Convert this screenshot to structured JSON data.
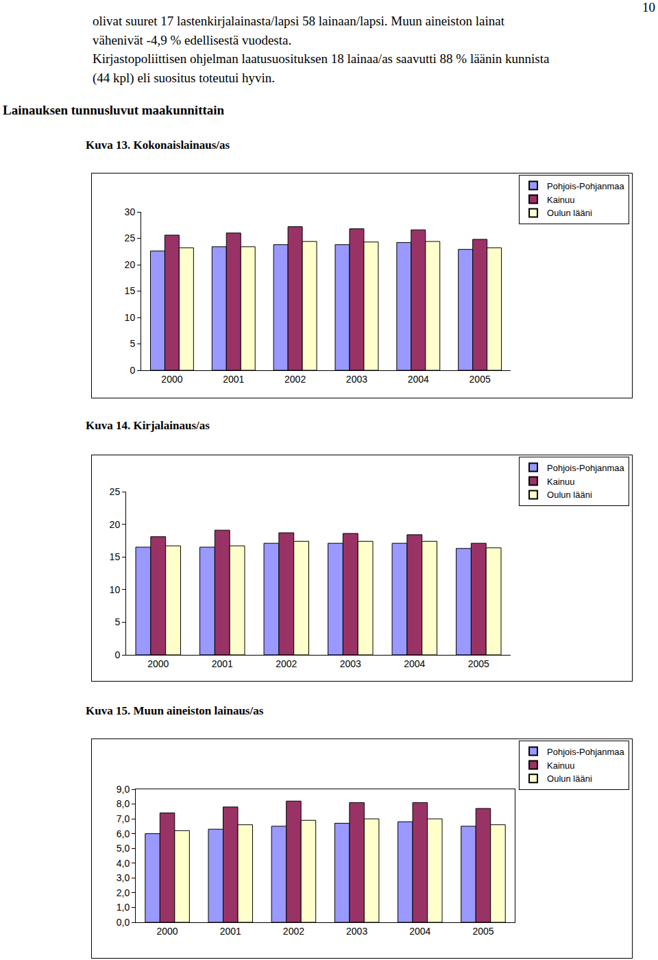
{
  "page": {
    "page_number": "10",
    "paragraph": [
      "olivat suuret  17 lastenkirjalainasta/lapsi 58 lainaan/lapsi. Muun aineiston lainat",
      "vähenivät -4,9 % edellisestä vuodesta.",
      "Kirjastopoliittisen ohjelman laatusuosituksen 18 lainaa/as saavutti 88 % läänin kunnista",
      "(44 kpl) eli suositus toteutui hyvin."
    ],
    "heading": "Lainauksen tunnusluvut maakunnittain"
  },
  "chart_data": [
    {
      "type": "bar",
      "title": "Kuva 13. Kokonaislainaus/as",
      "categories": [
        "2000",
        "2001",
        "2002",
        "2003",
        "2004",
        "2005"
      ],
      "series": [
        {
          "name": "Pohjois-Pohjanmaa",
          "color": "#9999ff",
          "values": [
            22.6,
            23.4,
            23.8,
            23.8,
            24.2,
            22.9
          ]
        },
        {
          "name": "Kainuu",
          "color": "#993366",
          "values": [
            25.6,
            26.0,
            27.2,
            26.8,
            26.6,
            24.8
          ]
        },
        {
          "name": "Oulun lääni",
          "color": "#ffffcc",
          "values": [
            23.2,
            23.4,
            24.4,
            24.3,
            24.4,
            23.2
          ]
        }
      ],
      "ylim": [
        0,
        30
      ],
      "yticks": [
        0,
        5,
        10,
        15,
        20,
        25,
        30
      ],
      "grid": false,
      "legend": "upper right"
    },
    {
      "type": "bar",
      "title": "Kuva 14. Kirjalainaus/as",
      "categories": [
        "2000",
        "2001",
        "2002",
        "2003",
        "2004",
        "2005"
      ],
      "series": [
        {
          "name": "Pohjois-Pohjanmaa",
          "color": "#9999ff",
          "values": [
            16.5,
            16.5,
            17.1,
            17.1,
            17.1,
            16.3
          ]
        },
        {
          "name": "Kainuu",
          "color": "#993366",
          "values": [
            18.1,
            19.1,
            18.7,
            18.6,
            18.4,
            17.1
          ]
        },
        {
          "name": "Oulun lääni",
          "color": "#ffffcc",
          "values": [
            16.7,
            16.7,
            17.4,
            17.4,
            17.4,
            16.4
          ]
        }
      ],
      "ylim": [
        0,
        25
      ],
      "yticks": [
        0,
        5,
        10,
        15,
        20,
        25
      ],
      "grid": false,
      "legend": "upper right"
    },
    {
      "type": "bar",
      "title": "Kuva 15. Muun aineiston lainaus/as",
      "categories": [
        "2000",
        "2001",
        "2002",
        "2003",
        "2004",
        "2005"
      ],
      "series": [
        {
          "name": "Pohjois-Pohjanmaa",
          "color": "#9999ff",
          "values": [
            6.0,
            6.3,
            6.5,
            6.7,
            6.8,
            6.5
          ]
        },
        {
          "name": "Kainuu",
          "color": "#993366",
          "values": [
            7.4,
            7.8,
            8.2,
            8.1,
            8.1,
            7.7
          ]
        },
        {
          "name": "Oulun lääni",
          "color": "#ffffcc",
          "values": [
            6.2,
            6.6,
            6.9,
            7.0,
            7.0,
            6.6
          ]
        }
      ],
      "ylim": [
        0,
        9
      ],
      "yticks": [
        {
          "value": 0,
          "label": "0,0"
        },
        {
          "value": 1,
          "label": "1,0"
        },
        {
          "value": 2,
          "label": "2,0"
        },
        {
          "value": 3,
          "label": "3,0"
        },
        {
          "value": 4,
          "label": "4,0"
        },
        {
          "value": 5,
          "label": "5,0"
        },
        {
          "value": 6,
          "label": "6,0"
        },
        {
          "value": 7,
          "label": "7,0"
        },
        {
          "value": 8,
          "label": "8,0"
        },
        {
          "value": 9,
          "label": "9,0"
        }
      ],
      "grid": false,
      "legend": "upper right"
    }
  ]
}
